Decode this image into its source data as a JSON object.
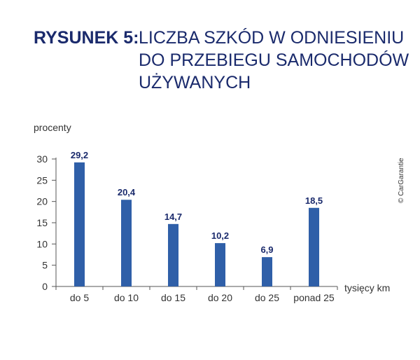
{
  "title": {
    "prefix": "RYSUNEK 5:",
    "lines": [
      "LICZBA SZKÓD W ODNIESIENIU",
      "DO PRZEBIEGU SAMOCHODÓW",
      "UŻYWANYCH"
    ]
  },
  "copyright": "© CarGarantie",
  "chart_data": {
    "type": "bar",
    "ylabel": "procenty",
    "xlabel": "tysięcy km",
    "categories": [
      "do 5",
      "do 10",
      "do 15",
      "do 20",
      "do 25",
      "ponad 25"
    ],
    "values": [
      29.2,
      20.4,
      14.7,
      10.2,
      6.9,
      18.5
    ],
    "value_labels": [
      "29,2",
      "20,4",
      "14,7",
      "10,2",
      "6,9",
      "18,5"
    ],
    "yticks": [
      0,
      5,
      10,
      15,
      20,
      25,
      30
    ],
    "ylim": [
      0,
      30
    ],
    "grid": false,
    "colors": {
      "bar": "#2f5fa8",
      "label": "#1a2a6c",
      "axis": "#555555",
      "text": "#333333"
    }
  }
}
